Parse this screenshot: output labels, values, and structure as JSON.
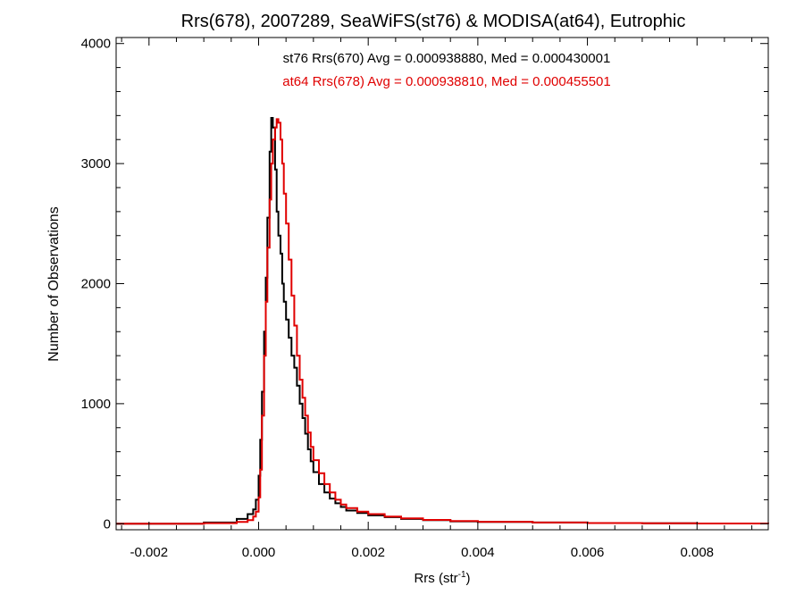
{
  "chart_data": {
    "type": "line",
    "title": "Rrs(678), 2007289, SeaWiFS(st76) & MODISA(at64), Eutrophic",
    "xlabel": "Rrs (str",
    "xlabel_sup": "-1",
    "xlabel_tail": ")",
    "ylabel": "Number of Observations",
    "xlim": [
      -0.0026,
      0.0093
    ],
    "ylim": [
      -50,
      4050
    ],
    "x_ticks": [
      -0.002,
      0.0,
      0.002,
      0.004,
      0.006,
      0.008
    ],
    "x_tick_labels": [
      "-0.002",
      "0.000",
      "0.002",
      "0.004",
      "0.006",
      "0.008"
    ],
    "y_ticks": [
      0,
      1000,
      2000,
      3000,
      4000
    ],
    "y_tick_labels": [
      "0",
      "1000",
      "2000",
      "3000",
      "4000"
    ],
    "grid": false,
    "step_style": "histogram",
    "series": [
      {
        "color": "#000000",
        "annotation": "st76 Rrs(670) Avg = 0.000938880, Med = 0.000430001",
        "x": [
          -0.0026,
          -0.001,
          -0.0004,
          -0.0002,
          -0.0001,
          -5e-05,
          0.0,
          3e-05,
          6e-05,
          0.0001,
          0.00013,
          0.00016,
          0.0002,
          0.00023,
          0.00026,
          0.0003,
          0.00033,
          0.00036,
          0.0004,
          0.00043,
          0.00046,
          0.0005,
          0.00055,
          0.0006,
          0.00065,
          0.0007,
          0.00075,
          0.0008,
          0.00085,
          0.0009,
          0.00095,
          0.001,
          0.0011,
          0.0012,
          0.0013,
          0.0014,
          0.0015,
          0.0016,
          0.0018,
          0.002,
          0.0023,
          0.0026,
          0.003,
          0.0035,
          0.004,
          0.005,
          0.006,
          0.007,
          0.008,
          0.0093
        ],
        "y": [
          0,
          10,
          40,
          80,
          120,
          200,
          400,
          700,
          1100,
          1600,
          2050,
          2550,
          3100,
          3380,
          3300,
          2950,
          2600,
          2400,
          2250,
          2000,
          1850,
          1700,
          1550,
          1400,
          1300,
          1150,
          1000,
          880,
          750,
          620,
          520,
          430,
          330,
          260,
          210,
          170,
          140,
          110,
          90,
          70,
          55,
          40,
          30,
          20,
          15,
          10,
          6,
          4,
          2,
          0
        ]
      },
      {
        "color": "#e00000",
        "annotation": "at64 Rrs(678) Avg = 0.000938810, Med = 0.000455501",
        "x": [
          -0.0026,
          -0.001,
          -0.0004,
          -0.0002,
          -0.0001,
          -5e-05,
          0.0,
          3e-05,
          6e-05,
          0.0001,
          0.00013,
          0.00016,
          0.0002,
          0.00023,
          0.00026,
          0.0003,
          0.00033,
          0.00036,
          0.0004,
          0.00043,
          0.00046,
          0.0005,
          0.00055,
          0.0006,
          0.00065,
          0.0007,
          0.00075,
          0.0008,
          0.00085,
          0.0009,
          0.00095,
          0.001,
          0.0011,
          0.0012,
          0.0013,
          0.0014,
          0.0015,
          0.0016,
          0.0018,
          0.002,
          0.0023,
          0.0026,
          0.003,
          0.0035,
          0.004,
          0.005,
          0.006,
          0.007,
          0.008,
          0.0093
        ],
        "y": [
          0,
          5,
          15,
          30,
          60,
          100,
          220,
          450,
          900,
          1400,
          1850,
          2300,
          2700,
          3000,
          3200,
          3300,
          3370,
          3340,
          3200,
          3000,
          2750,
          2500,
          2200,
          1900,
          1650,
          1400,
          1200,
          1050,
          900,
          760,
          640,
          530,
          420,
          330,
          260,
          200,
          160,
          130,
          100,
          80,
          60,
          45,
          32,
          22,
          16,
          10,
          6,
          4,
          2,
          0
        ]
      }
    ]
  }
}
